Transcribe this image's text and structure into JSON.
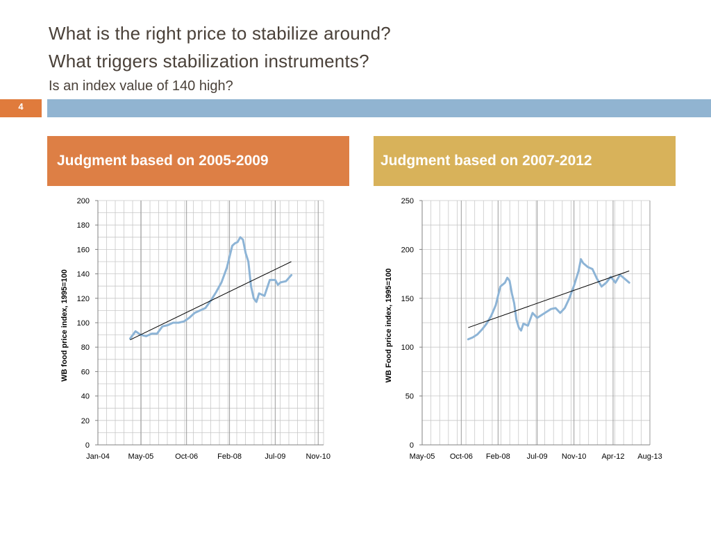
{
  "slide": {
    "title_line1": "What is the right price to stabilize around?",
    "title_line2": "What triggers stabilization instruments?",
    "title_line3": "Is an index value of 140 high?",
    "slide_number": "4",
    "accent_color": "#e07b3c",
    "bar_color": "#91b4d1"
  },
  "panels": [
    {
      "header": "Judgment based on 2005-2009",
      "color": "#dd7f45"
    },
    {
      "header": "Judgment based on 2007-2012",
      "color": "#d8b25a"
    }
  ],
  "chart_data": [
    {
      "type": "line",
      "ylabel": "WB food price index, 1995=100",
      "ylim": [
        0,
        200
      ],
      "yticks": [
        0,
        20,
        40,
        60,
        80,
        100,
        120,
        140,
        160,
        180,
        200
      ],
      "xlim": [
        "2004-01",
        "2011-01"
      ],
      "xticks": [
        "Jan-04",
        "May-05",
        "Oct-06",
        "Feb-08",
        "Jul-09",
        "Nov-10"
      ],
      "grid": true,
      "series_color": "#8db4d6",
      "series": [
        {
          "x": [
            "2005-01",
            "2005-03",
            "2005-05",
            "2005-07",
            "2005-09",
            "2005-11",
            "2006-01",
            "2006-03",
            "2006-05",
            "2006-07",
            "2006-09",
            "2006-11",
            "2007-01",
            "2007-03",
            "2007-05",
            "2007-07",
            "2007-09",
            "2007-11",
            "2008-01",
            "2008-03",
            "2008-04",
            "2008-05",
            "2008-06",
            "2008-07",
            "2008-08",
            "2008-09",
            "2008-10",
            "2008-11",
            "2008-12",
            "2009-01",
            "2009-03",
            "2009-05",
            "2009-07",
            "2009-08",
            "2009-09",
            "2009-11",
            "2010-01"
          ],
          "values": [
            87,
            93,
            90,
            89,
            91,
            91,
            97,
            98,
            100,
            100,
            101,
            104,
            108,
            110,
            112,
            118,
            125,
            133,
            145,
            163,
            165,
            166,
            170,
            168,
            157,
            150,
            130,
            120,
            117,
            124,
            122,
            135,
            135,
            131,
            133,
            134,
            139
          ]
        }
      ],
      "trendline": {
        "x": [
          "2005-01",
          "2010-01"
        ],
        "values": [
          86,
          150
        ]
      }
    },
    {
      "type": "line",
      "ylabel": "WB Food price index, 1995=100",
      "ylim": [
        0,
        250
      ],
      "yticks": [
        0,
        50,
        100,
        150,
        200,
        250
      ],
      "xlim": [
        "2005-05",
        "2013-08"
      ],
      "xticks": [
        "May-05",
        "Oct-06",
        "Feb-08",
        "Jul-09",
        "Nov-10",
        "Apr-12",
        "Aug-13"
      ],
      "grid": true,
      "series_color": "#8db4d6",
      "series": [
        {
          "x": [
            "2007-01",
            "2007-03",
            "2007-05",
            "2007-07",
            "2007-09",
            "2007-11",
            "2008-01",
            "2008-03",
            "2008-05",
            "2008-06",
            "2008-07",
            "2008-08",
            "2008-09",
            "2008-10",
            "2008-11",
            "2008-12",
            "2009-01",
            "2009-03",
            "2009-05",
            "2009-07",
            "2009-09",
            "2009-11",
            "2010-01",
            "2010-03",
            "2010-05",
            "2010-07",
            "2010-09",
            "2010-11",
            "2011-01",
            "2011-02",
            "2011-03",
            "2011-05",
            "2011-07",
            "2011-09",
            "2011-11",
            "2012-01",
            "2012-03",
            "2012-05",
            "2012-07",
            "2012-09",
            "2012-11"
          ],
          "values": [
            108,
            110,
            113,
            118,
            124,
            132,
            143,
            162,
            166,
            171,
            168,
            155,
            145,
            128,
            120,
            117,
            124,
            122,
            135,
            130,
            133,
            136,
            139,
            140,
            135,
            140,
            150,
            163,
            178,
            190,
            186,
            182,
            180,
            170,
            162,
            166,
            172,
            166,
            174,
            170,
            166
          ]
        }
      ],
      "trendline": {
        "x": [
          "2007-01",
          "2012-11"
        ],
        "values": [
          120,
          178
        ]
      }
    }
  ]
}
